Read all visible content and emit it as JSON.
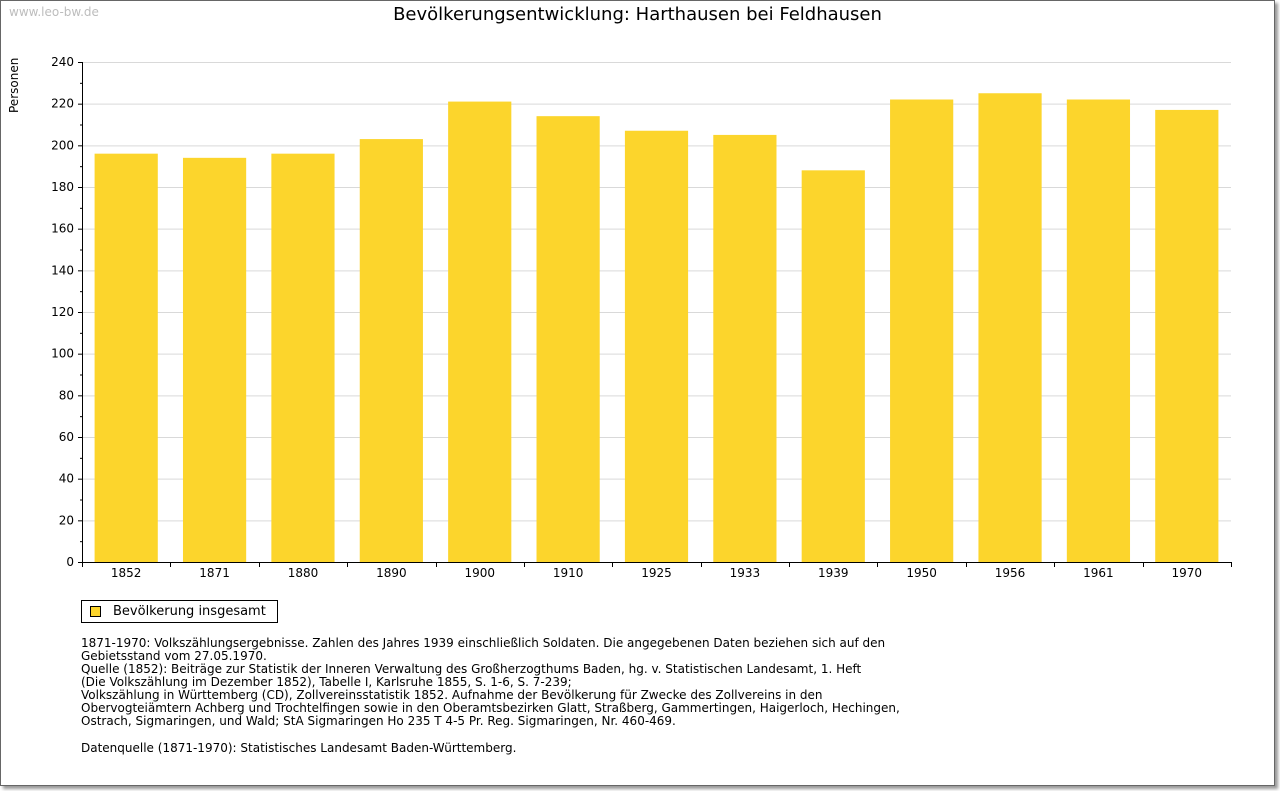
{
  "watermark": "www.leo-bw.de",
  "chart_data": {
    "type": "bar",
    "title": "Bevölkerungsentwicklung: Harthausen bei Feldhausen",
    "ylabel": "Personen",
    "xlabel": "",
    "categories": [
      "1852",
      "1871",
      "1880",
      "1890",
      "1900",
      "1910",
      "1925",
      "1933",
      "1939",
      "1950",
      "1956",
      "1961",
      "1970"
    ],
    "values": [
      196,
      194,
      196,
      203,
      221,
      214,
      207,
      205,
      188,
      222,
      225,
      222,
      217
    ],
    "ylim": [
      0,
      240
    ],
    "yticks": [
      0,
      20,
      40,
      60,
      80,
      100,
      120,
      140,
      160,
      180,
      200,
      220,
      240
    ],
    "grid": true,
    "bar_color": "#fcd52c",
    "legend": [
      {
        "name": "Bevölkerung insgesamt",
        "color": "#fcd52c"
      }
    ]
  },
  "notes": [
    "1871-1970: Volkszählungsergebnisse. Zahlen des Jahres 1939 einschließlich Soldaten. Die angegebenen Daten beziehen sich auf den",
    "Gebietsstand vom 27.05.1970.",
    "Quelle (1852): Beiträge zur Statistik der Inneren Verwaltung des Großherzogthums Baden, hg. v. Statistischen Landesamt, 1. Heft",
    "(Die Volkszählung im Dezember 1852), Tabelle I, Karlsruhe 1855, S. 1-6, S. 7-239;",
    "Volkszählung in Württemberg (CD), Zollvereinsstatistik 1852. Aufnahme der Bevölkerung für Zwecke des Zollvereins in den",
    "Obervogteiämtern Achberg und Trochtelfingen sowie in den Oberamtsbezirken Glatt, Straßberg, Gammertingen, Haigerloch, Hechingen,",
    "Ostrach, Sigmaringen, und Wald; StA Sigmaringen Ho 235 T 4-5 Pr. Reg. Sigmaringen, Nr. 460-469."
  ],
  "source": "Datenquelle (1871-1970): Statistisches Landesamt Baden-Württemberg."
}
